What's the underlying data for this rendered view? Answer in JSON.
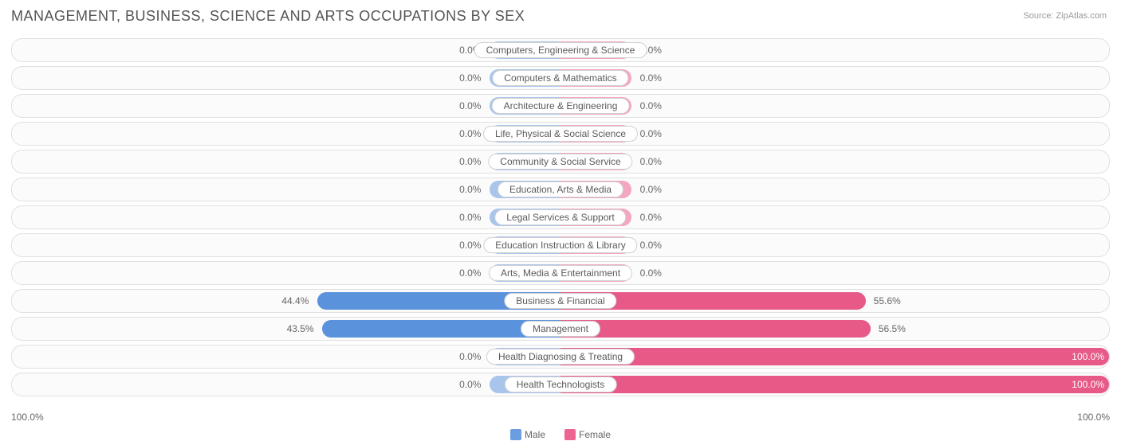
{
  "title": "MANAGEMENT, BUSINESS, SCIENCE AND ARTS OCCUPATIONS BY SEX",
  "source": "Source: ZipAtlas.com",
  "chart": {
    "type": "diverging-bar",
    "axis_left_label": "100.0%",
    "axis_right_label": "100.0%",
    "legend": [
      {
        "label": "Male",
        "color": "#6a9ee0"
      },
      {
        "label": "Female",
        "color": "#ec6691"
      }
    ],
    "colors": {
      "male_low": "#a9c5ec",
      "male_high": "#5a92dc",
      "female_low": "#f3a7c0",
      "female_high": "#e75a88",
      "row_border": "#e0e0e0",
      "row_bg": "#fbfbfb",
      "text": "#666666",
      "label_border": "#d0d0d0"
    },
    "min_bar_pct": 13.0,
    "label_offset_pct": 3.0,
    "rows": [
      {
        "category": "Computers, Engineering & Science",
        "male": 0.0,
        "female": 0.0
      },
      {
        "category": "Computers & Mathematics",
        "male": 0.0,
        "female": 0.0
      },
      {
        "category": "Architecture & Engineering",
        "male": 0.0,
        "female": 0.0
      },
      {
        "category": "Life, Physical & Social Science",
        "male": 0.0,
        "female": 0.0
      },
      {
        "category": "Community & Social Service",
        "male": 0.0,
        "female": 0.0
      },
      {
        "category": "Education, Arts & Media",
        "male": 0.0,
        "female": 0.0
      },
      {
        "category": "Legal Services & Support",
        "male": 0.0,
        "female": 0.0
      },
      {
        "category": "Education Instruction & Library",
        "male": 0.0,
        "female": 0.0
      },
      {
        "category": "Arts, Media & Entertainment",
        "male": 0.0,
        "female": 0.0
      },
      {
        "category": "Business & Financial",
        "male": 44.4,
        "female": 55.6
      },
      {
        "category": "Management",
        "male": 43.5,
        "female": 56.5
      },
      {
        "category": "Health Diagnosing & Treating",
        "male": 0.0,
        "female": 100.0
      },
      {
        "category": "Health Technologists",
        "male": 0.0,
        "female": 100.0
      }
    ]
  }
}
